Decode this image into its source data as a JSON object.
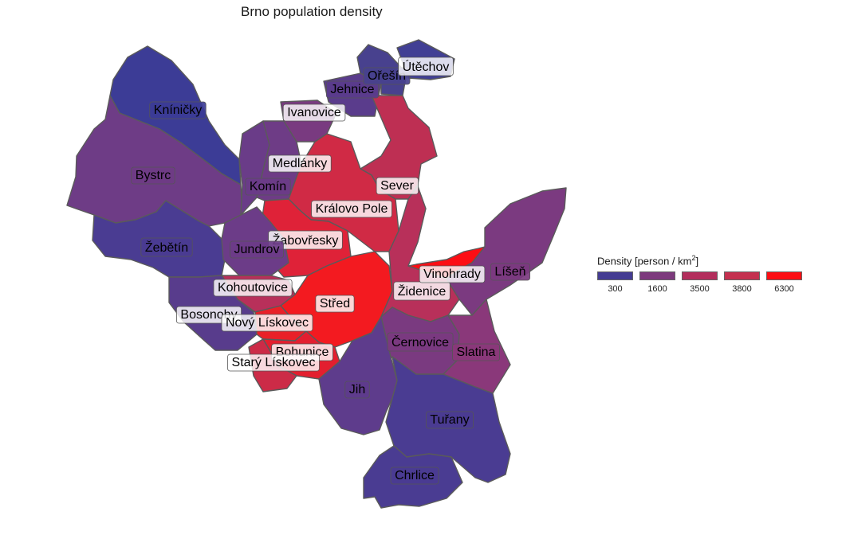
{
  "title": "Brno population density",
  "legend": {
    "title_prefix": "Density [person / km",
    "title_sup": "2",
    "title_suffix": "]",
    "items": [
      {
        "label": "300",
        "color": "#443c92"
      },
      {
        "label": "1600",
        "color": "#7d3a7d"
      },
      {
        "label": "3500",
        "color": "#b32e5c"
      },
      {
        "label": "3800",
        "color": "#c4304f"
      },
      {
        "label": "6300",
        "color": "#fc0e14"
      }
    ]
  },
  "districts": [
    {
      "name": "Kníničky",
      "color": "#3c3c96",
      "label_dark": true
    },
    {
      "name": "Bystrc",
      "color": "#6e3c86",
      "label_dark": true
    },
    {
      "name": "Žebětín",
      "color": "#4a3c92",
      "label_dark": true
    },
    {
      "name": "Komín",
      "color": "#6a3c88",
      "label_dark": true
    },
    {
      "name": "Medlánky",
      "color": "#6e3c86",
      "label_dark": false
    },
    {
      "name": "Ivanovice",
      "color": "#793a80",
      "label_dark": false
    },
    {
      "name": "Jehnice",
      "color": "#5a3c8c",
      "label_dark": true
    },
    {
      "name": "Ořešín",
      "color": "#48418e",
      "label_dark": true
    },
    {
      "name": "Útěchov",
      "color": "#413f94",
      "label_dark": false
    },
    {
      "name": "Sever",
      "color": "#be2f53",
      "label_dark": false
    },
    {
      "name": "Královo Pole",
      "color": "#d02a45",
      "label_dark": false
    },
    {
      "name": "Žabovřesky",
      "color": "#df2238",
      "label_dark": false
    },
    {
      "name": "Jundrov",
      "color": "#6c3c88",
      "label_dark": true
    },
    {
      "name": "Kohoutovice",
      "color": "#b8305a",
      "label_dark": false
    },
    {
      "name": "Bosonohy",
      "color": "#583c8c",
      "label_dark": false
    },
    {
      "name": "Střed",
      "color": "#f31a20",
      "label_dark": false
    },
    {
      "name": "Nový Lískovec",
      "color": "#e92028",
      "label_dark": false
    },
    {
      "name": "Bohunice",
      "color": "#e31f2f",
      "label_dark": false
    },
    {
      "name": "Starý Lískovec",
      "color": "#cc2b47",
      "label_dark": false
    },
    {
      "name": "Židenice",
      "color": "#b8305a",
      "label_dark": false
    },
    {
      "name": "Vinohrady",
      "color": "#fc0e14",
      "label_dark": false
    },
    {
      "name": "Líšeň",
      "color": "#7b3a80",
      "label_dark": true
    },
    {
      "name": "Černovice",
      "color": "#7a3a80",
      "label_dark": true
    },
    {
      "name": "Slatina",
      "color": "#8a387a",
      "label_dark": true
    },
    {
      "name": "Jih",
      "color": "#5e3c8c",
      "label_dark": true
    },
    {
      "name": "Tuřany",
      "color": "#4a3c92",
      "label_dark": true
    },
    {
      "name": "Chrlice",
      "color": "#4a3c92",
      "label_dark": true
    }
  ]
}
